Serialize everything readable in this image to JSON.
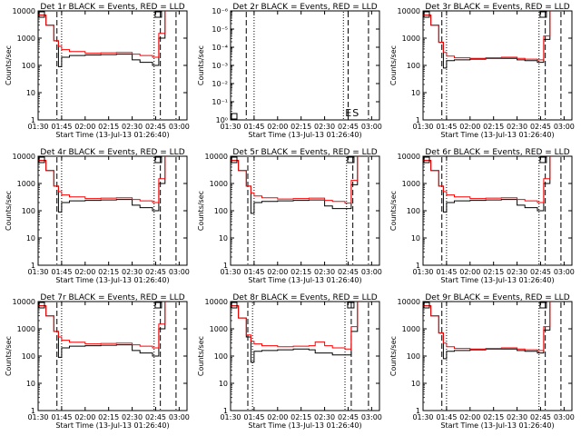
{
  "chart_data": [
    {
      "type": "line",
      "title": "Det 1r BLACK = Events, RED = LLD",
      "xlabel": "Start Time (13-Jul-13 01:26:40)",
      "ylabel": "Counts/sec",
      "yscale": "log",
      "ylim": [
        1,
        10000
      ],
      "xlim": [
        "01:30",
        "03:05"
      ],
      "xticks": [
        "01:30",
        "01:45",
        "02:00",
        "02:15",
        "02:30",
        "02:45",
        "03:00"
      ],
      "yticks": [
        "1",
        "10",
        "100",
        "1000",
        "10000"
      ],
      "x": [
        "01:30",
        "01:35",
        "01:40",
        "01:43",
        "01:45",
        "01:50",
        "02:00",
        "02:10",
        "02:20",
        "02:30",
        "02:35",
        "02:43",
        "02:47",
        "02:51"
      ],
      "series": [
        {
          "color": "#000000",
          "values": [
            7000,
            3000,
            800,
            90,
            200,
            230,
            240,
            250,
            260,
            160,
            130,
            100,
            1000,
            10000
          ]
        },
        {
          "color": "#ff0000",
          "values": [
            7000,
            3000,
            800,
            500,
            380,
            320,
            280,
            290,
            300,
            260,
            230,
            200,
            1500,
            10000
          ]
        }
      ],
      "vlines": [
        {
          "x": "01:42",
          "style": "dashed"
        },
        {
          "x": "01:45",
          "style": "dotted"
        },
        {
          "x": "02:44",
          "style": "dotted"
        },
        {
          "x": "02:48",
          "style": "dashed"
        },
        {
          "x": "02:58",
          "style": "dashed"
        }
      ]
    },
    {
      "type": "line",
      "title": "Det 2r BLACK = Events, RED = LLD",
      "xlabel": "Start Time (13-Jul-13 01:26:40)",
      "ylabel": "Counts/sec",
      "yscale": "log",
      "ylim": [
        1,
        1e-06
      ],
      "xlim": [
        "01:30",
        "03:05"
      ],
      "xticks": [
        "01:30",
        "01:45",
        "02:00",
        "02:15",
        "02:30",
        "02:45",
        "03:00"
      ],
      "yticks": [
        "10⁰",
        "10⁻¹",
        "10⁻²",
        "10⁻³",
        "10⁻⁴",
        "10⁻⁵",
        "10⁻⁶"
      ],
      "x": [],
      "series": [],
      "vlines": [
        {
          "x": "01:40",
          "style": "dashed"
        },
        {
          "x": "01:45",
          "style": "dotted"
        },
        {
          "x": "02:42",
          "style": "dotted"
        },
        {
          "x": "02:45",
          "style": "dashed"
        },
        {
          "x": "02:58",
          "style": "dashed"
        }
      ],
      "annotations": [
        "E",
        "S"
      ]
    },
    {
      "type": "line",
      "title": "Det 3r BLACK = Events, RED = LLD",
      "xlabel": "Start Time (13-Jul-13 01:26:40)",
      "ylabel": "Counts/sec",
      "yscale": "log",
      "ylim": [
        1,
        10000
      ],
      "xlim": [
        "01:30",
        "03:05"
      ],
      "xticks": [
        "01:30",
        "01:45",
        "02:00",
        "02:15",
        "02:30",
        "02:45",
        "03:00"
      ],
      "yticks": [
        "1",
        "10",
        "100",
        "1000",
        "10000"
      ],
      "x": [
        "01:30",
        "01:35",
        "01:40",
        "01:43",
        "01:45",
        "01:50",
        "02:00",
        "02:10",
        "02:20",
        "02:30",
        "02:35",
        "02:43",
        "02:47",
        "02:51"
      ],
      "series": [
        {
          "color": "#000000",
          "values": [
            7000,
            3000,
            700,
            80,
            150,
            160,
            170,
            180,
            180,
            160,
            150,
            130,
            900,
            10000
          ]
        },
        {
          "color": "#ff0000",
          "values": [
            7000,
            3000,
            700,
            300,
            220,
            190,
            180,
            190,
            200,
            180,
            170,
            160,
            1200,
            10000
          ]
        }
      ],
      "vlines": [
        {
          "x": "01:42",
          "style": "dashed"
        },
        {
          "x": "01:45",
          "style": "dotted"
        },
        {
          "x": "02:44",
          "style": "dotted"
        },
        {
          "x": "02:48",
          "style": "dashed"
        },
        {
          "x": "02:58",
          "style": "dashed"
        }
      ]
    },
    {
      "type": "line",
      "title": "Det 4r BLACK = Events, RED = LLD",
      "xlabel": "Start Time (13-Jul-13 01:26:40)",
      "ylabel": "Counts/sec",
      "yscale": "log",
      "ylim": [
        1,
        10000
      ],
      "xlim": [
        "01:30",
        "03:05"
      ],
      "xticks": [
        "01:30",
        "01:45",
        "02:00",
        "02:15",
        "02:30",
        "02:45",
        "03:00"
      ],
      "yticks": [
        "1",
        "10",
        "100",
        "1000",
        "10000"
      ],
      "x": [
        "01:30",
        "01:35",
        "01:40",
        "01:43",
        "01:45",
        "01:50",
        "02:00",
        "02:10",
        "02:20",
        "02:30",
        "02:35",
        "02:43",
        "02:47",
        "02:51"
      ],
      "series": [
        {
          "color": "#000000",
          "values": [
            7000,
            3000,
            800,
            90,
            200,
            230,
            240,
            250,
            260,
            160,
            130,
            100,
            1000,
            10000
          ]
        },
        {
          "color": "#ff0000",
          "values": [
            7000,
            3000,
            800,
            500,
            380,
            320,
            280,
            290,
            300,
            260,
            230,
            200,
            1500,
            10000
          ]
        }
      ],
      "vlines": [
        {
          "x": "01:42",
          "style": "dashed"
        },
        {
          "x": "01:45",
          "style": "dotted"
        },
        {
          "x": "02:44",
          "style": "dotted"
        },
        {
          "x": "02:48",
          "style": "dashed"
        },
        {
          "x": "02:58",
          "style": "dashed"
        }
      ]
    },
    {
      "type": "line",
      "title": "Det 5r BLACK = Events, RED = LLD",
      "xlabel": "Start Time (13-Jul-13 01:26:40)",
      "ylabel": "Counts/sec",
      "yscale": "log",
      "ylim": [
        1,
        10000
      ],
      "xlim": [
        "01:30",
        "03:05"
      ],
      "xticks": [
        "01:30",
        "01:45",
        "02:00",
        "02:15",
        "02:30",
        "02:45",
        "03:00"
      ],
      "yticks": [
        "1",
        "10",
        "100",
        "1000",
        "10000"
      ],
      "x": [
        "01:30",
        "01:35",
        "01:40",
        "01:43",
        "01:45",
        "01:50",
        "02:00",
        "02:10",
        "02:20",
        "02:30",
        "02:35",
        "02:43",
        "02:47",
        "02:51"
      ],
      "series": [
        {
          "color": "#000000",
          "values": [
            7000,
            3000,
            800,
            80,
            200,
            220,
            230,
            240,
            250,
            150,
            120,
            120,
            900,
            10000
          ]
        },
        {
          "color": "#ff0000",
          "values": [
            7000,
            3000,
            800,
            450,
            350,
            300,
            270,
            280,
            290,
            240,
            220,
            190,
            1300,
            10000
          ]
        }
      ],
      "vlines": [
        {
          "x": "01:41",
          "style": "dashed"
        },
        {
          "x": "01:45",
          "style": "dotted"
        },
        {
          "x": "02:44",
          "style": "dotted"
        },
        {
          "x": "02:48",
          "style": "dashed"
        },
        {
          "x": "02:58",
          "style": "dashed"
        }
      ]
    },
    {
      "type": "line",
      "title": "Det 6r BLACK = Events, RED = LLD",
      "xlabel": "Start Time (13-Jul-13 01:26:40)",
      "ylabel": "Counts/sec",
      "yscale": "log",
      "ylim": [
        1,
        10000
      ],
      "xlim": [
        "01:30",
        "03:05"
      ],
      "xticks": [
        "01:30",
        "01:45",
        "02:00",
        "02:15",
        "02:30",
        "02:45",
        "03:00"
      ],
      "yticks": [
        "1",
        "10",
        "100",
        "1000",
        "10000"
      ],
      "x": [
        "01:30",
        "01:35",
        "01:40",
        "01:43",
        "01:45",
        "01:50",
        "02:00",
        "02:10",
        "02:20",
        "02:30",
        "02:35",
        "02:43",
        "02:47",
        "02:51"
      ],
      "series": [
        {
          "color": "#000000",
          "values": [
            7000,
            3000,
            800,
            90,
            200,
            230,
            240,
            250,
            260,
            160,
            130,
            100,
            1000,
            10000
          ]
        },
        {
          "color": "#ff0000",
          "values": [
            7000,
            3000,
            800,
            500,
            380,
            320,
            280,
            290,
            300,
            260,
            230,
            200,
            1500,
            10000
          ]
        }
      ],
      "vlines": [
        {
          "x": "01:42",
          "style": "dashed"
        },
        {
          "x": "01:45",
          "style": "dotted"
        },
        {
          "x": "02:44",
          "style": "dotted"
        },
        {
          "x": "02:48",
          "style": "dashed"
        },
        {
          "x": "02:58",
          "style": "dashed"
        }
      ]
    },
    {
      "type": "line",
      "title": "Det 7r BLACK = Events, RED = LLD",
      "xlabel": "Start Time (13-Jul-13 01:26:40)",
      "ylabel": "Counts/sec",
      "yscale": "log",
      "ylim": [
        1,
        10000
      ],
      "xlim": [
        "01:30",
        "03:05"
      ],
      "xticks": [
        "01:30",
        "01:45",
        "02:00",
        "02:15",
        "02:30",
        "02:45",
        "03:00"
      ],
      "yticks": [
        "1",
        "10",
        "100",
        "1000",
        "10000"
      ],
      "x": [
        "01:30",
        "01:35",
        "01:40",
        "01:43",
        "01:45",
        "01:50",
        "02:00",
        "02:10",
        "02:20",
        "02:30",
        "02:35",
        "02:43",
        "02:47",
        "02:51"
      ],
      "series": [
        {
          "color": "#000000",
          "values": [
            7000,
            3000,
            800,
            90,
            200,
            230,
            240,
            250,
            260,
            160,
            130,
            100,
            1000,
            10000
          ]
        },
        {
          "color": "#ff0000",
          "values": [
            7000,
            3000,
            800,
            500,
            380,
            320,
            280,
            290,
            300,
            260,
            230,
            200,
            1500,
            10000
          ]
        }
      ],
      "vlines": [
        {
          "x": "01:42",
          "style": "dashed"
        },
        {
          "x": "01:45",
          "style": "dotted"
        },
        {
          "x": "02:44",
          "style": "dotted"
        },
        {
          "x": "02:48",
          "style": "dashed"
        },
        {
          "x": "02:58",
          "style": "dashed"
        }
      ]
    },
    {
      "type": "line",
      "title": "Det 8r BLACK = Events, RED = LLD",
      "xlabel": "Start Time (13-Jul-13 01:26:40)",
      "ylabel": "Counts/sec",
      "yscale": "log",
      "ylim": [
        1,
        10000
      ],
      "xlim": [
        "01:30",
        "03:05"
      ],
      "xticks": [
        "01:30",
        "01:45",
        "02:00",
        "02:15",
        "02:30",
        "02:45",
        "03:00"
      ],
      "yticks": [
        "1",
        "10",
        "100",
        "1000",
        "10000"
      ],
      "x": [
        "01:30",
        "01:35",
        "01:40",
        "01:43",
        "01:45",
        "01:50",
        "02:00",
        "02:10",
        "02:20",
        "02:24",
        "02:30",
        "02:35",
        "02:43",
        "02:47",
        "02:51"
      ],
      "series": [
        {
          "color": "#000000",
          "values": [
            7000,
            2500,
            500,
            60,
            150,
            160,
            170,
            180,
            170,
            130,
            130,
            110,
            110,
            800,
            10000
          ]
        },
        {
          "color": "#ff0000",
          "values": [
            7000,
            2500,
            600,
            350,
            280,
            240,
            220,
            230,
            240,
            330,
            240,
            200,
            180,
            1200,
            10000
          ]
        }
      ],
      "vlines": [
        {
          "x": "01:41",
          "style": "dashed"
        },
        {
          "x": "01:44",
          "style": "dotted"
        },
        {
          "x": "02:43",
          "style": "dotted"
        },
        {
          "x": "02:47",
          "style": "dashed"
        },
        {
          "x": "02:58",
          "style": "dashed"
        }
      ]
    },
    {
      "type": "line",
      "title": "Det 9r BLACK = Events, RED = LLD",
      "xlabel": "Start Time (13-Jul-13 01:26:40)",
      "ylabel": "Counts/sec",
      "yscale": "log",
      "ylim": [
        1,
        10000
      ],
      "xlim": [
        "01:30",
        "03:05"
      ],
      "xticks": [
        "01:30",
        "01:45",
        "02:00",
        "02:15",
        "02:30",
        "02:45",
        "03:00"
      ],
      "yticks": [
        "1",
        "10",
        "100",
        "1000",
        "10000"
      ],
      "x": [
        "01:30",
        "01:35",
        "01:40",
        "01:43",
        "01:45",
        "01:50",
        "02:00",
        "02:10",
        "02:20",
        "02:30",
        "02:35",
        "02:43",
        "02:47",
        "02:51"
      ],
      "series": [
        {
          "color": "#000000",
          "values": [
            7000,
            3000,
            700,
            80,
            150,
            160,
            170,
            180,
            180,
            160,
            150,
            130,
            900,
            10000
          ]
        },
        {
          "color": "#ff0000",
          "values": [
            7000,
            3000,
            700,
            300,
            220,
            190,
            180,
            190,
            200,
            180,
            170,
            160,
            1200,
            10000
          ]
        }
      ],
      "vlines": [
        {
          "x": "01:42",
          "style": "dashed"
        },
        {
          "x": "01:45",
          "style": "dotted"
        },
        {
          "x": "02:44",
          "style": "dotted"
        },
        {
          "x": "02:48",
          "style": "dashed"
        },
        {
          "x": "02:58",
          "style": "dashed"
        }
      ]
    }
  ]
}
